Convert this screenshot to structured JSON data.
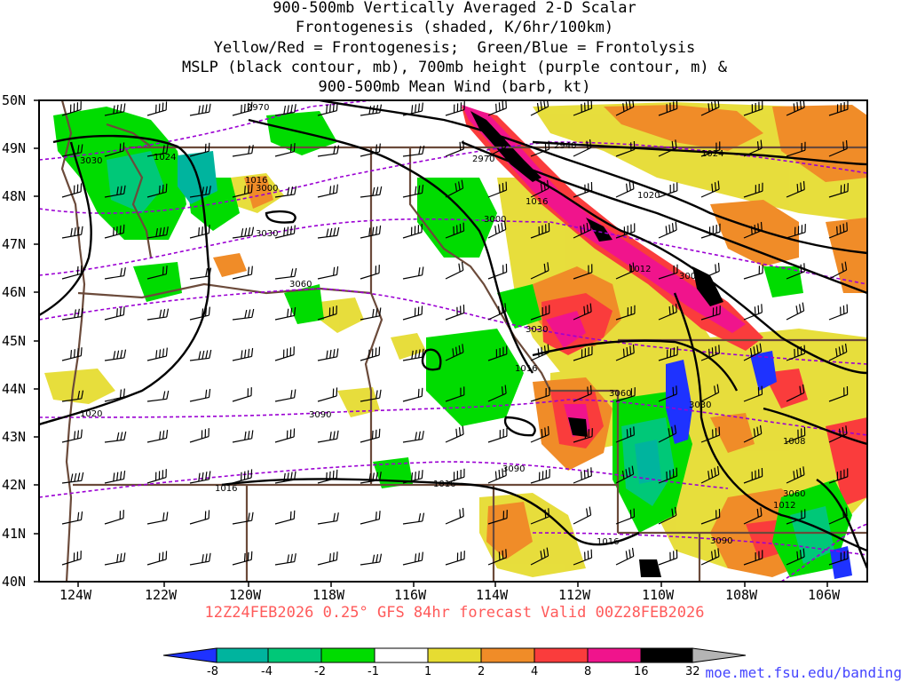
{
  "title_lines": [
    "900-500mb Vertically Averaged 2-D Scalar",
    "Frontogenesis (shaded, K/6hr/100km)",
    "Yellow/Red = Frontogenesis;  Green/Blue = Frontolysis",
    "MSLP (black contour, mb), 700mb height (purple contour, m) &",
    "900-500mb Mean Wind (barb, kt)"
  ],
  "footer": "12Z24FEB2026 0.25° GFS 84hr forecast Valid 00Z28FEB2026",
  "credit": "moe.met.fsu.edu/banding",
  "lat_labels": [
    "50N",
    "49N",
    "48N",
    "47N",
    "46N",
    "45N",
    "44N",
    "43N",
    "42N",
    "41N",
    "40N"
  ],
  "lon_labels": [
    "124W",
    "122W",
    "120W",
    "118W",
    "116W",
    "114W",
    "112W",
    "110W",
    "108W",
    "106W"
  ],
  "colorbar": {
    "labels": [
      "-8",
      "-4",
      "-2",
      "-1",
      "1",
      "2",
      "4",
      "8",
      "16",
      "32"
    ],
    "colors": [
      "#1e32ff",
      "#00b49e",
      "#00c878",
      "#00dc00",
      "#ffffff",
      "#e6dc32",
      "#f08c28",
      "#fa3c3c",
      "#f0148c",
      "#000000",
      "#b4b4b4"
    ]
  },
  "mslp_labels": [
    "1024",
    "1024",
    "1016",
    "1016",
    "1020",
    "1012",
    "1016",
    "1020",
    "1016",
    "1016",
    "1012",
    "1008",
    "1016"
  ],
  "height_labels": [
    "3030",
    "2970",
    "2940",
    "2970",
    "3000",
    "3030",
    "3060",
    "3000",
    "3000",
    "3030",
    "3090",
    "3060",
    "3090",
    "3030",
    "3090",
    "3060"
  ],
  "colors": {
    "mslp": "#000000",
    "height": "#9b00d3",
    "border": "#6b4a3a",
    "footer": "#ff5a5a",
    "credit": "#4444ff"
  }
}
